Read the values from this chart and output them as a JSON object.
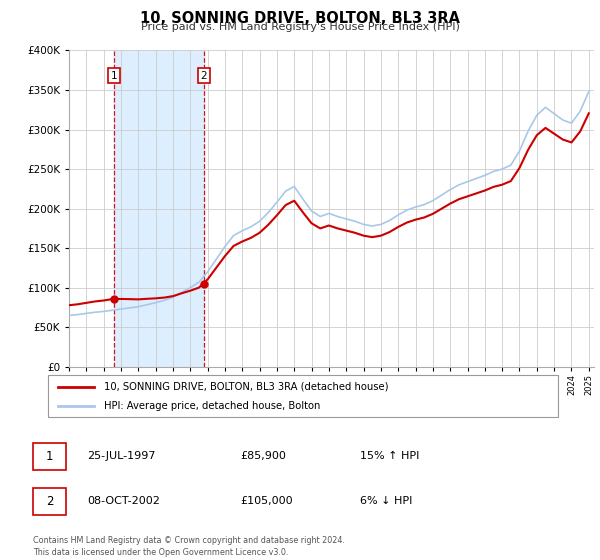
{
  "title": "10, SONNING DRIVE, BOLTON, BL3 3RA",
  "subtitle": "Price paid vs. HM Land Registry's House Price Index (HPI)",
  "sale1_year": 1997.58,
  "sale1_price": 85900,
  "sale2_year": 2002.77,
  "sale2_price": 105000,
  "legend_line1": "10, SONNING DRIVE, BOLTON, BL3 3RA (detached house)",
  "legend_line2": "HPI: Average price, detached house, Bolton",
  "table_row1": [
    "1",
    "25-JUL-1997",
    "£85,900",
    "15% ↑ HPI"
  ],
  "table_row2": [
    "2",
    "08-OCT-2002",
    "£105,000",
    "6% ↓ HPI"
  ],
  "footer1": "Contains HM Land Registry data © Crown copyright and database right 2024.",
  "footer2": "This data is licensed under the Open Government Licence v3.0.",
  "hpi_color": "#a8c8e8",
  "price_color": "#cc0000",
  "shading_color": "#ddeeff",
  "grid_color": "#cccccc",
  "ylim": [
    0,
    400000
  ],
  "yticks": [
    0,
    50000,
    100000,
    150000,
    200000,
    250000,
    300000,
    350000,
    400000
  ],
  "hpi_values": [
    65000,
    66000,
    67500,
    69000,
    70000,
    71500,
    73000,
    74500,
    76000,
    78500,
    81000,
    84000,
    88000,
    94000,
    100000,
    107000,
    120000,
    136000,
    152000,
    166000,
    172000,
    177000,
    184000,
    195000,
    208000,
    222000,
    228000,
    212000,
    197000,
    190000,
    194000,
    190000,
    187000,
    184000,
    180000,
    178000,
    180000,
    185000,
    192000,
    198000,
    202000,
    205000,
    210000,
    217000,
    224000,
    230000,
    234000,
    238000,
    242000,
    247000,
    250000,
    255000,
    273000,
    298000,
    318000,
    328000,
    320000,
    312000,
    308000,
    323000,
    348000
  ],
  "years_hpi": [
    1995.0,
    1995.5,
    1996.0,
    1996.5,
    1997.0,
    1997.5,
    1998.0,
    1998.5,
    1999.0,
    1999.5,
    2000.0,
    2000.5,
    2001.0,
    2001.5,
    2002.0,
    2002.5,
    2003.0,
    2003.5,
    2004.0,
    2004.5,
    2005.0,
    2005.5,
    2006.0,
    2006.5,
    2007.0,
    2007.5,
    2008.0,
    2008.5,
    2009.0,
    2009.5,
    2010.0,
    2010.5,
    2011.0,
    2011.5,
    2012.0,
    2012.5,
    2013.0,
    2013.5,
    2014.0,
    2014.5,
    2015.0,
    2015.5,
    2016.0,
    2016.5,
    2017.0,
    2017.5,
    2018.0,
    2018.5,
    2019.0,
    2019.5,
    2020.0,
    2020.5,
    2021.0,
    2021.5,
    2022.0,
    2022.5,
    2023.0,
    2023.5,
    2024.0,
    2024.5,
    2025.0
  ]
}
